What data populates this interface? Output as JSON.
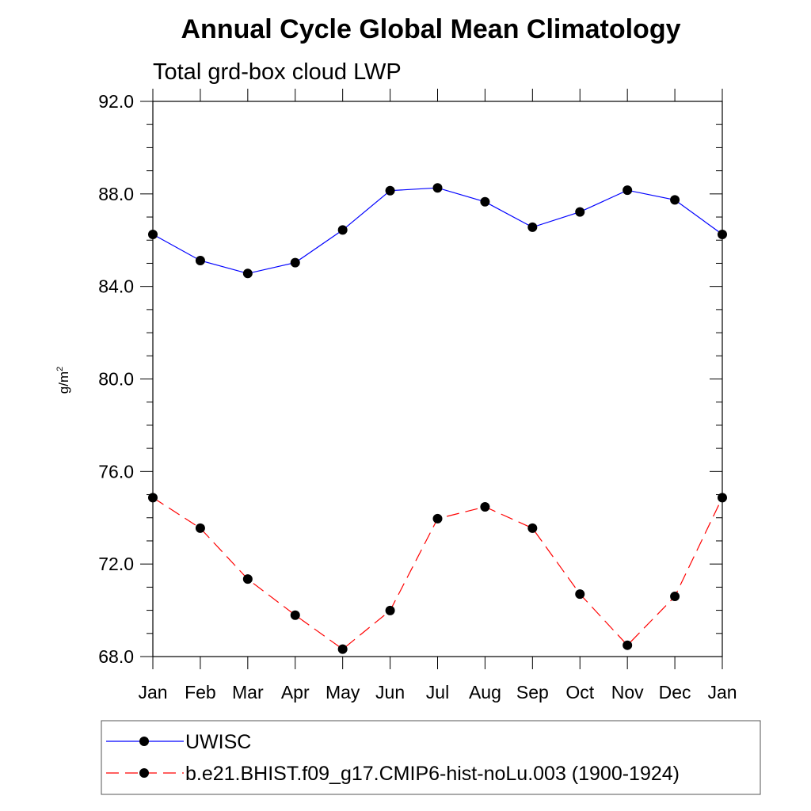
{
  "chart_data": {
    "type": "line",
    "title": "Annual Cycle Global Mean Climatology",
    "subtitle": "Total grd-box cloud LWP",
    "ylabel": "g/m",
    "ylabel_sup": "2",
    "categories": [
      "Jan",
      "Feb",
      "Mar",
      "Apr",
      "May",
      "Jun",
      "Jul",
      "Aug",
      "Sep",
      "Oct",
      "Nov",
      "Dec",
      "Jan"
    ],
    "ylim": [
      68.0,
      92.0
    ],
    "y_ticks": [
      "68.0",
      "72.0",
      "76.0",
      "80.0",
      "84.0",
      "88.0",
      "92.0"
    ],
    "y_tick_values": [
      68,
      72,
      76,
      80,
      84,
      88,
      92
    ],
    "grid": false,
    "legend_position": "bottom",
    "series": [
      {
        "name": "UWISC",
        "color": "#0000ff",
        "dash": "solid",
        "values": [
          86.25,
          85.12,
          84.56,
          85.03,
          86.44,
          88.14,
          88.26,
          87.66,
          86.56,
          87.22,
          88.16,
          87.74,
          86.25
        ]
      },
      {
        "name": "b.e21.BHIST.f09_g17.CMIP6-hist-noLu.003 (1900-1924)",
        "color": "#ff0000",
        "dash": "dashed",
        "values": [
          74.87,
          73.55,
          71.35,
          69.79,
          68.32,
          69.99,
          73.96,
          74.47,
          73.55,
          70.7,
          68.49,
          70.6,
          74.87
        ]
      }
    ]
  }
}
